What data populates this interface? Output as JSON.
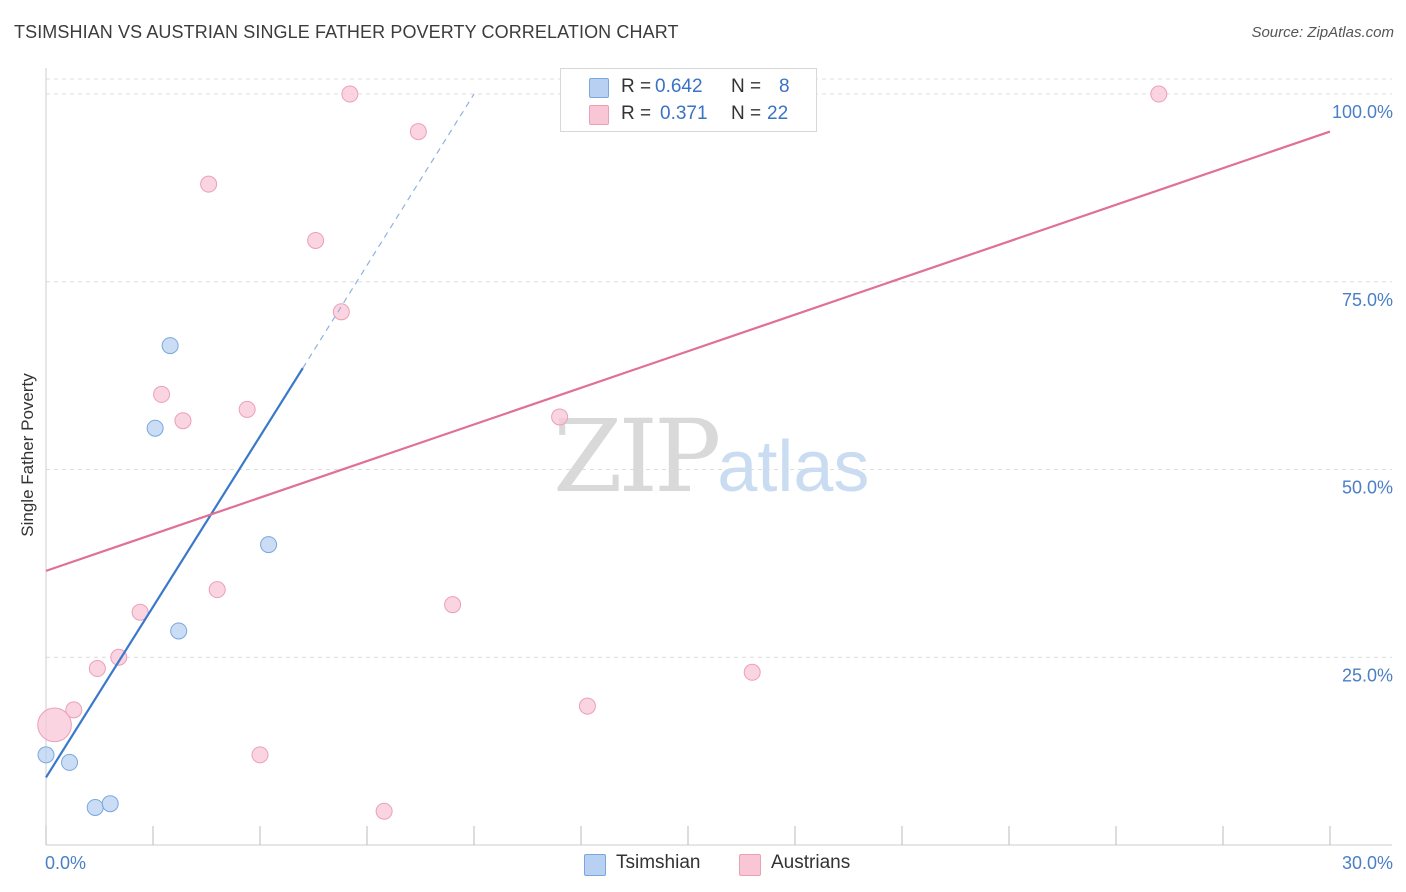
{
  "title": "TSIMSHIAN VS AUSTRIAN SINGLE FATHER POVERTY CORRELATION CHART",
  "source": "Source: ZipAtlas.com",
  "watermark": {
    "zip": "ZIP",
    "atlas": "atlas"
  },
  "legend": {
    "tsimshian": {
      "r_label": "R =",
      "r_value": "0.642",
      "n_label": "N =",
      "n_value": "8"
    },
    "austrians": {
      "r_label": "R =",
      "r_value": "0.371",
      "n_label": "N =",
      "n_value": "22"
    }
  },
  "bottom_legend": {
    "tsimshian": "Tsimshian",
    "austrians": "Austrians"
  },
  "colors": {
    "blue": "#3a78c9",
    "blue_fill": "#b8d1f2",
    "pink": "#e07095",
    "pink_fill": "#f8c6d5"
  },
  "chart_data": {
    "type": "scatter",
    "title": "TSIMSHIAN VS AUSTRIAN SINGLE FATHER POVERTY CORRELATION CHART",
    "xlabel": "",
    "ylabel": "Single Father Poverty",
    "xlim": [
      0,
      30
    ],
    "ylim": [
      0,
      102
    ],
    "x_tick_labels": [
      "0.0%",
      "30.0%"
    ],
    "y_ticks": [
      25,
      50,
      75,
      100
    ],
    "y_tick_labels": [
      "25.0%",
      "50.0%",
      "75.0%",
      "100.0%"
    ],
    "series": [
      {
        "name": "Tsimshian",
        "color": "#3a78c9",
        "points": [
          {
            "x": 0.0,
            "y": 12.0,
            "s": 1
          },
          {
            "x": 0.55,
            "y": 11.0,
            "s": 1
          },
          {
            "x": 1.15,
            "y": 5.0,
            "s": 1
          },
          {
            "x": 1.5,
            "y": 5.5,
            "s": 1
          },
          {
            "x": 2.55,
            "y": 55.5,
            "s": 1
          },
          {
            "x": 2.9,
            "y": 66.5,
            "s": 1
          },
          {
            "x": 3.1,
            "y": 28.5,
            "s": 1
          },
          {
            "x": 5.2,
            "y": 40.0,
            "s": 1
          }
        ],
        "trendline": {
          "x": [
            0.0,
            6.0
          ],
          "y": [
            9.0,
            63.5
          ],
          "dashed_to": [
            10.0,
            100.0
          ]
        }
      },
      {
        "name": "Austrians",
        "color": "#e07095",
        "points": [
          {
            "x": 0.2,
            "y": 16.0,
            "s": 3
          },
          {
            "x": 0.65,
            "y": 18.0,
            "s": 1
          },
          {
            "x": 1.2,
            "y": 23.5,
            "s": 1
          },
          {
            "x": 1.7,
            "y": 25.0,
            "s": 1
          },
          {
            "x": 2.2,
            "y": 31.0,
            "s": 1
          },
          {
            "x": 2.7,
            "y": 60.0,
            "s": 1
          },
          {
            "x": 3.2,
            "y": 56.5,
            "s": 1
          },
          {
            "x": 3.8,
            "y": 88.0,
            "s": 1
          },
          {
            "x": 4.0,
            "y": 34.0,
            "s": 1
          },
          {
            "x": 4.7,
            "y": 58.0,
            "s": 1
          },
          {
            "x": 5.0,
            "y": 12.0,
            "s": 1
          },
          {
            "x": 6.3,
            "y": 80.5,
            "s": 1
          },
          {
            "x": 6.9,
            "y": 71.0,
            "s": 1
          },
          {
            "x": 7.1,
            "y": 100.0,
            "s": 1
          },
          {
            "x": 7.9,
            "y": 4.5,
            "s": 1
          },
          {
            "x": 8.7,
            "y": 95.0,
            "s": 1
          },
          {
            "x": 9.5,
            "y": 32.0,
            "s": 1
          },
          {
            "x": 12.0,
            "y": 57.0,
            "s": 1
          },
          {
            "x": 12.65,
            "y": 18.5,
            "s": 1
          },
          {
            "x": 16.5,
            "y": 23.0,
            "s": 1
          },
          {
            "x": 26.0,
            "y": 100.0,
            "s": 1
          }
        ],
        "trendline": {
          "x": [
            0.0,
            30.0
          ],
          "y": [
            36.5,
            95.0
          ]
        }
      }
    ]
  }
}
